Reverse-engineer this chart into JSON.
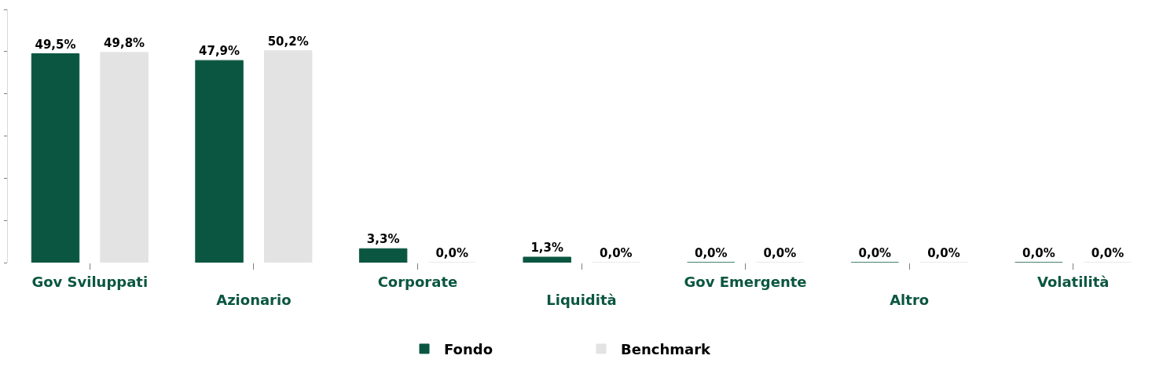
{
  "chart_data": {
    "type": "bar",
    "categories": [
      "Gov Sviluppati",
      "Azionario",
      "Corporate",
      "Liquidità",
      "Gov Emergente",
      "Altro",
      "Volatilità"
    ],
    "series": [
      {
        "name": "Fondo",
        "color": "#0b5640",
        "values": [
          49.5,
          47.9,
          3.3,
          1.3,
          0.0,
          0.0,
          0.0
        ],
        "value_labels": [
          "49,5%",
          "47,9%",
          "3,3%",
          "1,3%",
          "0,0%",
          "0,0%",
          "0,0%"
        ]
      },
      {
        "name": "Benchmark",
        "color": "#e3e3e3",
        "values": [
          49.8,
          50.2,
          0.0,
          0.0,
          0.0,
          0.0,
          0.0
        ],
        "value_labels": [
          "49,8%",
          "50,2%",
          "0,0%",
          "0,0%",
          "0,0%",
          "0,0%",
          "0,0%"
        ]
      }
    ],
    "ylim": [
      0,
      60
    ],
    "yticks": [
      {
        "value": 0,
        "label": null
      },
      {
        "value": 10,
        "label": null
      },
      {
        "value": 20,
        "label": null
      },
      {
        "value": 30,
        "label": null
      },
      {
        "value": 40,
        "label": null
      },
      {
        "value": 50,
        "label": null
      },
      {
        "value": 60,
        "label": null
      }
    ],
    "tick_labels": "x",
    "grid": false,
    "legend": "bottom"
  }
}
